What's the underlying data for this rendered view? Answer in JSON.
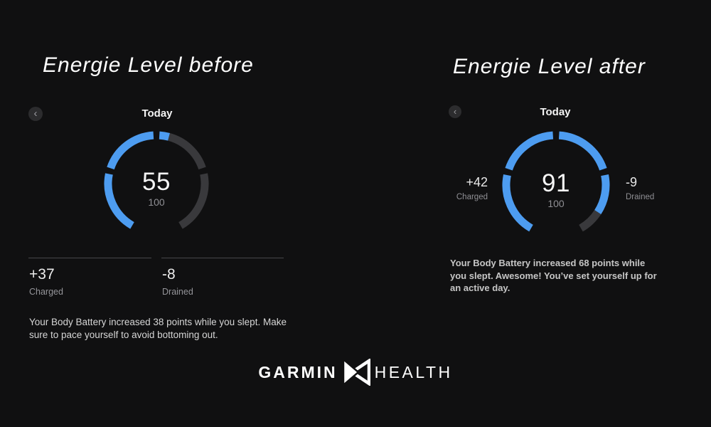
{
  "colors": {
    "background": "#101011",
    "gauge_fill": "#4d9cf0",
    "gauge_track": "#39393c",
    "text_white": "#f5f5f5",
    "text_gray": "#95959a"
  },
  "left_panel": {
    "title": "Energie Level before",
    "nav": {
      "back_icon": "chevron-left",
      "date_label": "Today"
    },
    "gauge": {
      "value": 55,
      "max": 100,
      "max_label": "100"
    },
    "stats": [
      {
        "value": "+37",
        "label": "Charged"
      },
      {
        "value": "-8",
        "label": "Drained"
      }
    ],
    "message": "Your Body Battery increased 38 points while you slept. Make sure to pace yourself to avoid bottoming out."
  },
  "right_panel": {
    "title": "Energie Level after",
    "nav": {
      "back_icon": "chevron-left",
      "date_label": "Today"
    },
    "gauge": {
      "value": 91,
      "max": 100,
      "max_label": "100"
    },
    "stats": [
      {
        "value": "+42",
        "label": "Charged"
      },
      {
        "value": "-9",
        "label": "Drained"
      }
    ],
    "message": "Your Body Battery increased 68 points while you slept. Awesome! You’ve set yourself up for an active day."
  },
  "footer": {
    "brand_left": "GARMIN",
    "logo": "garmin-delta-logo",
    "brand_right": "HEALTH"
  }
}
